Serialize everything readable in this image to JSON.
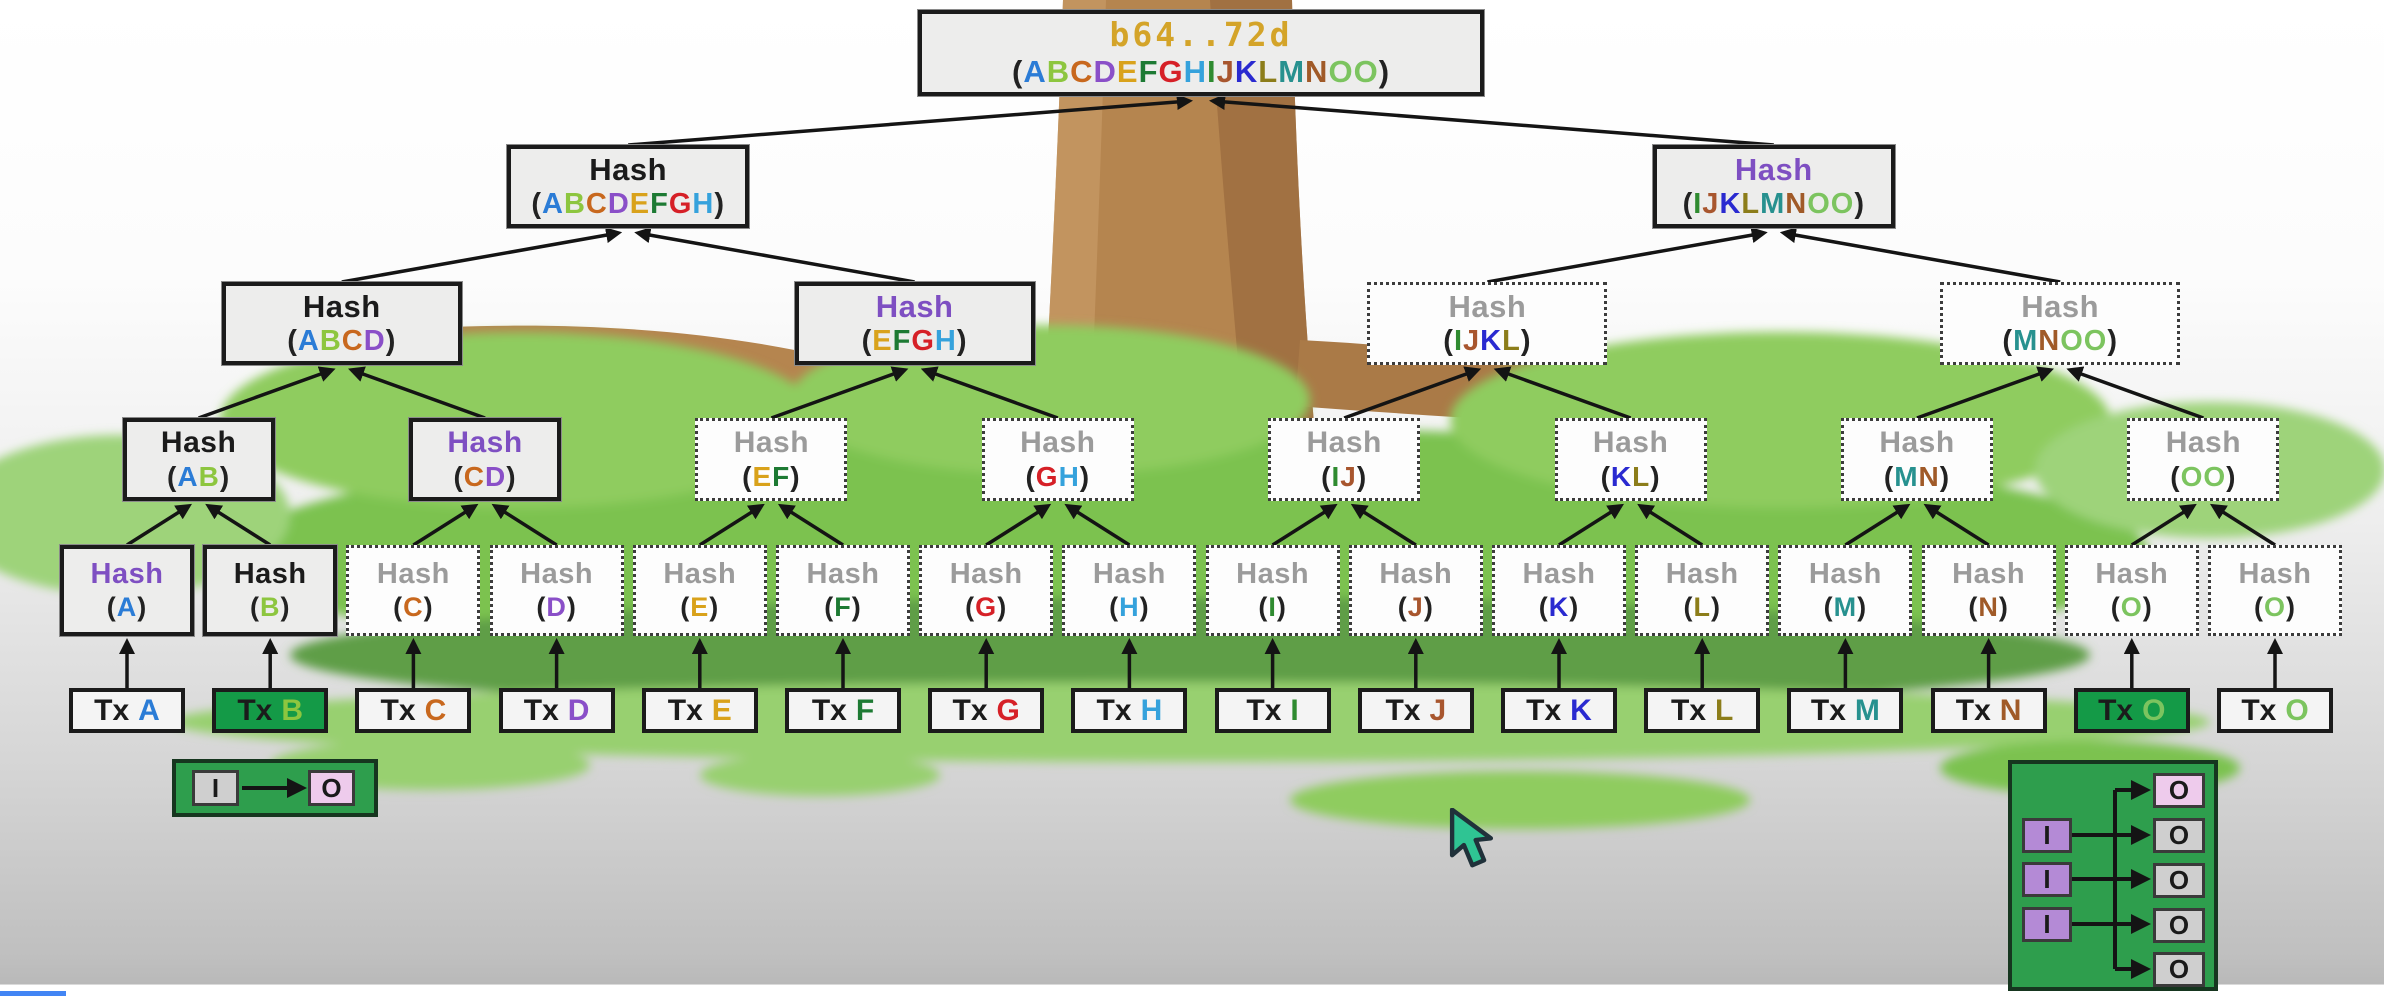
{
  "palette": {
    "edge": "#141414",
    "root_hash_color": "#d4a429",
    "path_label": "#1b1b1b",
    "sibling_label": "#7e4fc2",
    "unused_label": "#9b9b9b",
    "paren": "#222222",
    "tx_highlight_bg": "#149a47",
    "widget_bg": "#2e9e4d",
    "input_purple": "#b48ad6",
    "output_pink": "#eecbec",
    "io_gray": "#cfcfcf",
    "cursor_fill": "#2fc493",
    "progress_bar": "#4285f4"
  },
  "letter_colors": {
    "A": "#2b7cd6",
    "B": "#8dc63f",
    "C": "#c8681e",
    "D": "#8a4fc8",
    "E": "#d9a21b",
    "F": "#1d7a33",
    "G": "#d62027",
    "H": "#35a2dc",
    "I": "#2f8b30",
    "J": "#a8562e",
    "K": "#2a2ad0",
    "L": "#8c7d1a",
    "M": "#27918f",
    "N": "#a05a28",
    "O": "#7cc45f"
  },
  "tree": {
    "root": {
      "hash_text": "b64..72d",
      "letters": "ABCDEFGHIJKLMNOO"
    },
    "levels": [
      {
        "name": "level-2",
        "nodes": [
          {
            "word": "Hash",
            "letters": "ABCDEFGH",
            "style": "path",
            "border": "solid"
          },
          {
            "word": "Hash",
            "letters": "IJKLMNOO",
            "style": "sibling",
            "border": "solid"
          }
        ]
      },
      {
        "name": "level-3",
        "nodes": [
          {
            "word": "Hash",
            "letters": "ABCD",
            "style": "path",
            "border": "solid"
          },
          {
            "word": "Hash",
            "letters": "EFGH",
            "style": "sibling",
            "border": "solid"
          },
          {
            "word": "Hash",
            "letters": "IJKL",
            "style": "unused",
            "border": "dotted"
          },
          {
            "word": "Hash",
            "letters": "MNOO",
            "style": "unused",
            "border": "dotted"
          }
        ]
      },
      {
        "name": "level-4",
        "nodes": [
          {
            "word": "Hash",
            "letters": "AB",
            "style": "path",
            "border": "solid"
          },
          {
            "word": "Hash",
            "letters": "CD",
            "style": "sibling",
            "border": "solid"
          },
          {
            "word": "Hash",
            "letters": "EF",
            "style": "unused",
            "border": "dotted"
          },
          {
            "word": "Hash",
            "letters": "GH",
            "style": "unused",
            "border": "dotted"
          },
          {
            "word": "Hash",
            "letters": "IJ",
            "style": "unused",
            "border": "dotted"
          },
          {
            "word": "Hash",
            "letters": "KL",
            "style": "unused",
            "border": "dotted"
          },
          {
            "word": "Hash",
            "letters": "MN",
            "style": "unused",
            "border": "dotted"
          },
          {
            "word": "Hash",
            "letters": "OO",
            "style": "unused",
            "border": "dotted"
          }
        ]
      },
      {
        "name": "level-5",
        "nodes": [
          {
            "word": "Hash",
            "letters": "A",
            "style": "sibling",
            "border": "solid"
          },
          {
            "word": "Hash",
            "letters": "B",
            "style": "path",
            "border": "solid"
          },
          {
            "word": "Hash",
            "letters": "C",
            "style": "unused",
            "border": "dotted"
          },
          {
            "word": "Hash",
            "letters": "D",
            "style": "unused",
            "border": "dotted"
          },
          {
            "word": "Hash",
            "letters": "E",
            "style": "unused",
            "border": "dotted"
          },
          {
            "word": "Hash",
            "letters": "F",
            "style": "unused",
            "border": "dotted"
          },
          {
            "word": "Hash",
            "letters": "G",
            "style": "unused",
            "border": "dotted"
          },
          {
            "word": "Hash",
            "letters": "H",
            "style": "unused",
            "border": "dotted"
          },
          {
            "word": "Hash",
            "letters": "I",
            "style": "unused",
            "border": "dotted"
          },
          {
            "word": "Hash",
            "letters": "J",
            "style": "unused",
            "border": "dotted"
          },
          {
            "word": "Hash",
            "letters": "K",
            "style": "unused",
            "border": "dotted"
          },
          {
            "word": "Hash",
            "letters": "L",
            "style": "unused",
            "border": "dotted"
          },
          {
            "word": "Hash",
            "letters": "M",
            "style": "unused",
            "border": "dotted"
          },
          {
            "word": "Hash",
            "letters": "N",
            "style": "unused",
            "border": "dotted"
          },
          {
            "word": "Hash",
            "letters": "O",
            "style": "unused",
            "border": "dotted"
          },
          {
            "word": "Hash",
            "letters": "O",
            "style": "unused",
            "border": "dotted"
          }
        ]
      }
    ],
    "leaves": {
      "word": "Tx",
      "items": [
        {
          "letter": "A",
          "highlight": false
        },
        {
          "letter": "B",
          "highlight": true
        },
        {
          "letter": "C",
          "highlight": false
        },
        {
          "letter": "D",
          "highlight": false
        },
        {
          "letter": "E",
          "highlight": false
        },
        {
          "letter": "F",
          "highlight": false
        },
        {
          "letter": "G",
          "highlight": false
        },
        {
          "letter": "H",
          "highlight": false
        },
        {
          "letter": "I",
          "highlight": false
        },
        {
          "letter": "J",
          "highlight": false
        },
        {
          "letter": "K",
          "highlight": false
        },
        {
          "letter": "L",
          "highlight": false
        },
        {
          "letter": "M",
          "highlight": false
        },
        {
          "letter": "N",
          "highlight": false
        },
        {
          "letter": "O",
          "highlight": true
        },
        {
          "letter": "O",
          "highlight": false
        }
      ]
    }
  },
  "widgets": {
    "single_io": {
      "input": "I",
      "output": "O"
    },
    "multi_io": {
      "inputs": [
        "I",
        "I",
        "I"
      ],
      "outputs": [
        "O",
        "O",
        "O",
        "O",
        "O"
      ]
    }
  }
}
